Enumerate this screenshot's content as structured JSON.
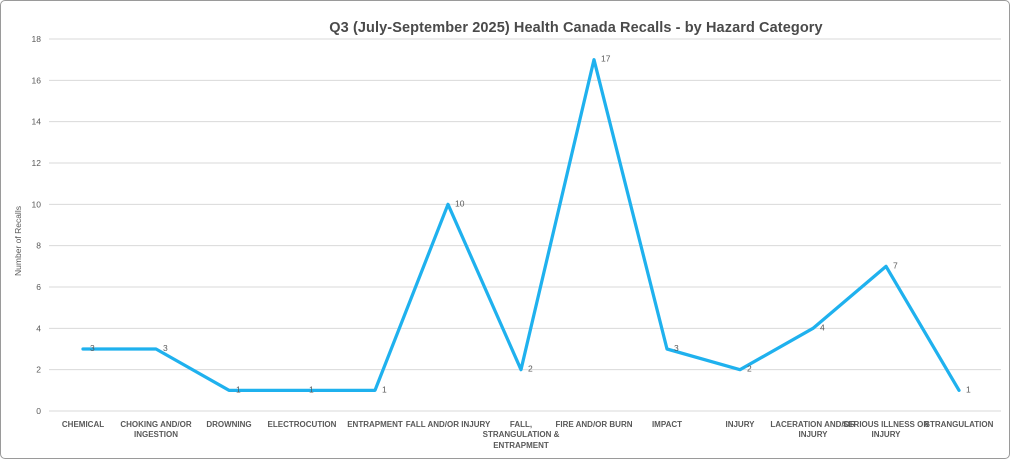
{
  "chart_data": {
    "type": "line",
    "title": "Q3 (July-September 2025) Health Canada Recalls - by Hazard Category",
    "xlabel": "",
    "ylabel": "Number of Recalls",
    "categories": [
      "CHEMICAL",
      "CHOKING AND/OR INGESTION",
      "DROWNING",
      "ELECTROCUTION",
      "ENTRAPMENT",
      "FALL AND/OR INJURY",
      "FALL, STRANGULATION & ENTRAPMENT",
      "FIRE AND/OR BURN",
      "IMPACT",
      "INJURY",
      "LACERATION AND/OR INJURY",
      "SERIOUS ILLNESS OR INJURY",
      "STRANGULATION"
    ],
    "values": [
      3,
      3,
      1,
      1,
      1,
      10,
      2,
      17,
      3,
      2,
      4,
      7,
      1
    ],
    "ylim": [
      0,
      18
    ],
    "yticks": [
      0,
      2,
      4,
      6,
      8,
      10,
      12,
      14,
      16,
      18
    ],
    "grid": true,
    "legend_position": "none",
    "data_labels_shown": true,
    "colors": {
      "line": "#1fb1ee",
      "grid": "#d9d9d9",
      "axis_text": "#595959",
      "title_text": "#4a4a4a",
      "background": "#ffffff",
      "border": "#9a9a9a"
    }
  }
}
